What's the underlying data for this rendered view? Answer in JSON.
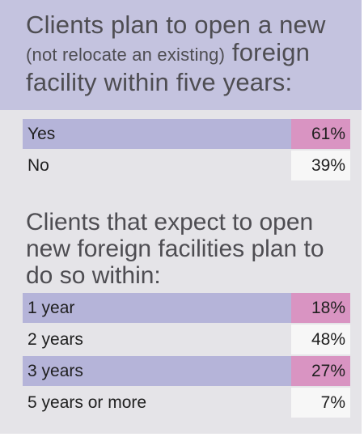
{
  "section1": {
    "title_a": "Clients plan to open a new",
    "title_paren": "(not relocate an existing)",
    "title_b": " foreign facility within five years:",
    "rows": [
      {
        "label": "Yes",
        "value_text": "61%",
        "highlight": true
      },
      {
        "label": "No",
        "value_text": "39%",
        "highlight": false
      }
    ]
  },
  "section2": {
    "title": "Clients that expect to open new foreign facilities plan to do so within:",
    "rows": [
      {
        "label": "1 year",
        "value_text": "18%",
        "highlight": true
      },
      {
        "label": "2 years",
        "value_text": "48%",
        "highlight": false
      },
      {
        "label": "3 years",
        "value_text": "27%",
        "highlight": true
      },
      {
        "label": "5 years or more",
        "value_text": "7%",
        "highlight": false
      }
    ]
  },
  "colors": {
    "header_bg": "#c4c3df",
    "row_highlight": "#b5b4d9",
    "value_highlight": "#d994c2",
    "card_bg": "#e5e4e8"
  },
  "chart_data": [
    {
      "type": "table",
      "title": "Clients plan to open a new (not relocate an existing) foreign facility within five years:",
      "categories": [
        "Yes",
        "No"
      ],
      "values": [
        61,
        39
      ],
      "unit": "%"
    },
    {
      "type": "table",
      "title": "Clients that expect to open new foreign facilities plan to do so within:",
      "categories": [
        "1 year",
        "2 years",
        "3 years",
        "5 years or more"
      ],
      "values": [
        18,
        48,
        27,
        7
      ],
      "unit": "%"
    }
  ]
}
